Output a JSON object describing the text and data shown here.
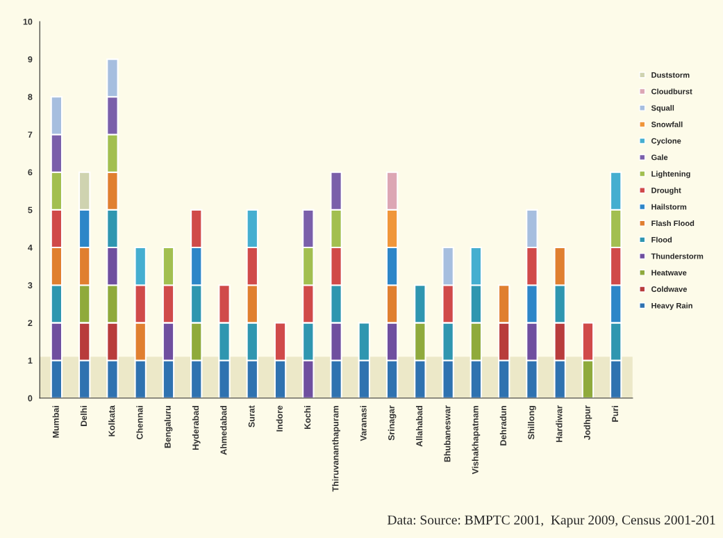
{
  "chart_data": {
    "type": "bar",
    "stacked": true,
    "categories": [
      "Mumbai",
      "Delhi",
      "Kolkata",
      "Chennai",
      "Bengaluru",
      "Hyderabad",
      "Ahmedabad",
      "Surat",
      "Indore",
      "Kochi",
      "Thiruvananthapuram",
      "Varanasi",
      "Srinagar",
      "Allahabad",
      "Bhubaneswar",
      "Vishakhapatnam",
      "Dehradun",
      "Shillong",
      "Hardiwar",
      "Jodhpur",
      "Puri"
    ],
    "series": [
      {
        "name": "Heavy Rain",
        "color": "#2f72b0",
        "values": [
          1,
          1,
          1,
          1,
          1,
          1,
          1,
          1,
          1,
          null,
          1,
          1,
          1,
          1,
          1,
          1,
          1,
          1,
          1,
          null,
          1
        ]
      },
      {
        "name": "Coldwave",
        "color": "#b83c3c",
        "values": [
          null,
          1,
          1,
          null,
          null,
          null,
          null,
          null,
          null,
          null,
          null,
          null,
          null,
          null,
          null,
          null,
          1,
          null,
          1,
          null,
          null
        ]
      },
      {
        "name": "Heatwave",
        "color": "#8faa3c",
        "values": [
          null,
          1,
          1,
          null,
          null,
          1,
          null,
          null,
          null,
          null,
          null,
          null,
          null,
          1,
          null,
          1,
          null,
          null,
          null,
          1,
          null
        ]
      },
      {
        "name": "Thunderstorm",
        "color": "#6f4f9f",
        "values": [
          1,
          null,
          1,
          null,
          1,
          null,
          null,
          null,
          null,
          1,
          1,
          null,
          1,
          null,
          null,
          null,
          null,
          1,
          null,
          null,
          null
        ]
      },
      {
        "name": "Flood",
        "color": "#2f96b0",
        "values": [
          1,
          null,
          1,
          null,
          null,
          1,
          1,
          1,
          null,
          1,
          1,
          1,
          null,
          1,
          1,
          1,
          null,
          null,
          1,
          null,
          1
        ]
      },
      {
        "name": "Flash Flood",
        "color": "#e07f30",
        "values": [
          1,
          1,
          1,
          1,
          null,
          null,
          null,
          1,
          null,
          null,
          null,
          null,
          1,
          null,
          null,
          null,
          1,
          null,
          1,
          null,
          null
        ]
      },
      {
        "name": "Hailstorm",
        "color": "#2d86c8",
        "values": [
          null,
          1,
          null,
          null,
          null,
          1,
          null,
          null,
          null,
          null,
          null,
          null,
          1,
          null,
          null,
          null,
          null,
          1,
          null,
          null,
          1
        ]
      },
      {
        "name": "Drought",
        "color": "#d04a4a",
        "values": [
          1,
          null,
          null,
          1,
          1,
          1,
          1,
          1,
          1,
          1,
          1,
          null,
          null,
          null,
          1,
          null,
          null,
          1,
          null,
          1,
          1
        ]
      },
      {
        "name": "Lightening",
        "color": "#a2bf50",
        "values": [
          1,
          null,
          1,
          null,
          1,
          null,
          null,
          null,
          null,
          1,
          1,
          null,
          null,
          null,
          null,
          null,
          null,
          null,
          null,
          null,
          1
        ]
      },
      {
        "name": "Gale",
        "color": "#7a5faa",
        "values": [
          1,
          null,
          1,
          null,
          null,
          null,
          null,
          null,
          null,
          1,
          1,
          null,
          null,
          null,
          null,
          null,
          null,
          null,
          null,
          null,
          null
        ]
      },
      {
        "name": "Cyclone",
        "color": "#45aed0",
        "values": [
          null,
          null,
          null,
          1,
          null,
          null,
          null,
          1,
          null,
          null,
          null,
          null,
          null,
          null,
          null,
          1,
          null,
          null,
          null,
          null,
          1
        ]
      },
      {
        "name": "Snowfall",
        "color": "#f0963a",
        "values": [
          null,
          null,
          null,
          null,
          null,
          null,
          null,
          null,
          null,
          null,
          null,
          null,
          1,
          null,
          null,
          null,
          null,
          null,
          null,
          null,
          null
        ]
      },
      {
        "name": "Squall",
        "color": "#a6bedf",
        "values": [
          1,
          null,
          1,
          null,
          null,
          null,
          null,
          null,
          null,
          null,
          null,
          null,
          null,
          null,
          1,
          null,
          null,
          1,
          null,
          null,
          null
        ]
      },
      {
        "name": "Cloudburst",
        "color": "#dca6b4",
        "values": [
          null,
          null,
          null,
          null,
          null,
          null,
          null,
          null,
          null,
          null,
          null,
          null,
          1,
          null,
          null,
          null,
          null,
          null,
          null,
          null,
          null
        ]
      },
      {
        "name": "Duststorm",
        "color": "#cfd3b0",
        "values": [
          null,
          1,
          null,
          null,
          null,
          null,
          null,
          null,
          null,
          null,
          null,
          null,
          null,
          null,
          null,
          null,
          null,
          null,
          null,
          null,
          null
        ]
      }
    ],
    "ylim": [
      0,
      10
    ],
    "yticks": [
      0,
      1,
      2,
      3,
      4,
      5,
      6,
      7,
      8,
      9,
      10
    ],
    "bands": [
      {
        "axis": "y",
        "from": 0,
        "to": 1.1,
        "color": "#ece8c8"
      }
    ],
    "grid": false,
    "legend": "right",
    "annotations": [
      "Data: Source: BMPTC 2001,  Kapur 2009, Census 2001-201"
    ]
  }
}
